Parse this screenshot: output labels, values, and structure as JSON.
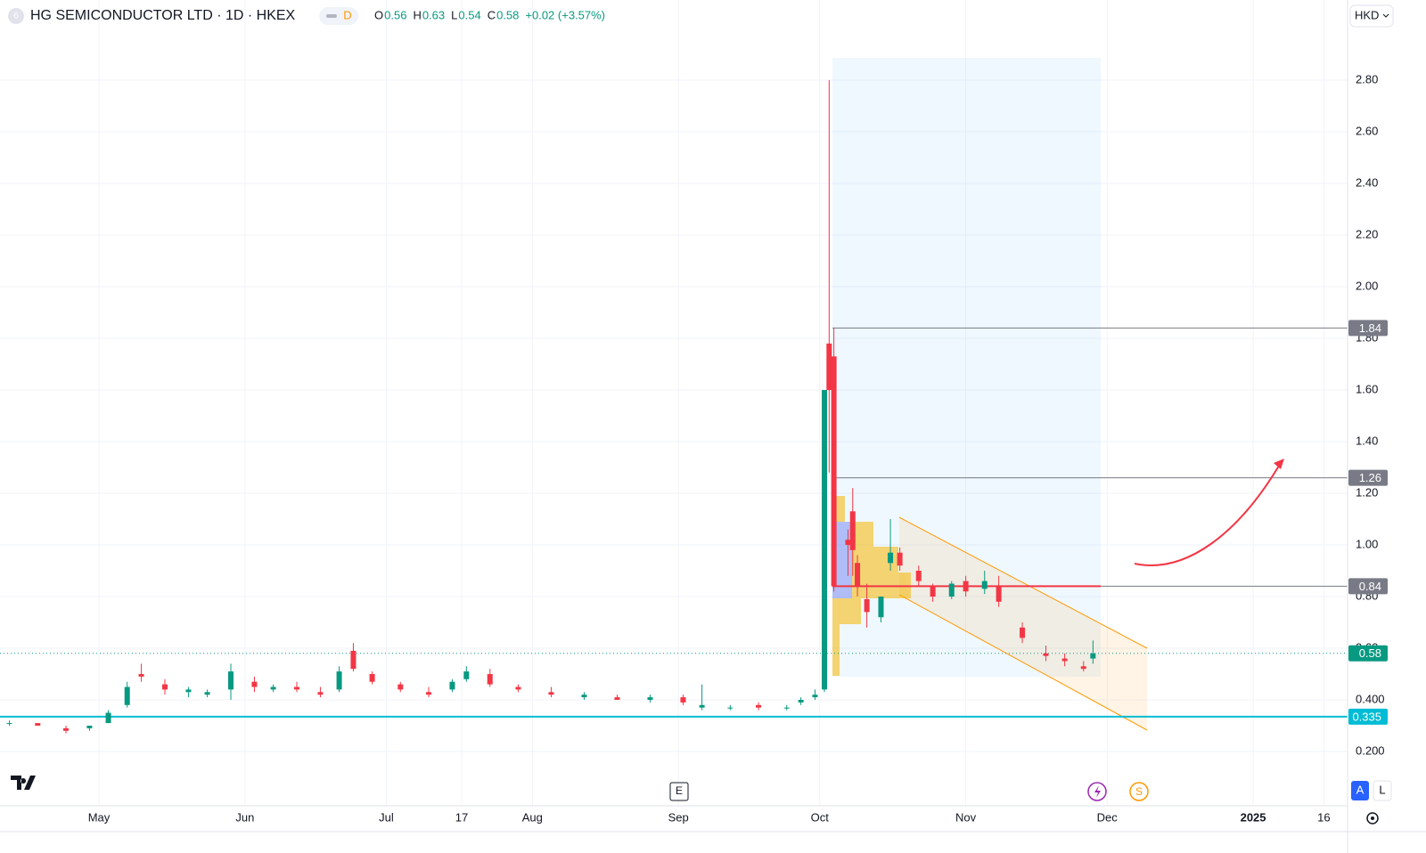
{
  "header": {
    "symbol_icon": "6",
    "title": "HG SEMICONDUCTOR LTD · 1D · HKEX",
    "badge": "D",
    "ohlc": [
      {
        "key": "O",
        "value": "0.56"
      },
      {
        "key": "H",
        "value": "0.63"
      },
      {
        "key": "L",
        "value": "0.54"
      },
      {
        "key": "C",
        "value": "0.58"
      }
    ],
    "change": "+0.02 (+3.57%)",
    "currency": "HKD"
  },
  "chart_data": {
    "type": "candlestick",
    "up_color": "#089981",
    "down_color": "#f23645",
    "x": [
      "04-12",
      "04-18",
      "04-24",
      "04-29",
      "05-03",
      "05-07",
      "05-10",
      "05-15",
      "05-20",
      "05-24",
      "05-29",
      "06-03",
      "06-07",
      "06-12",
      "06-17",
      "06-21",
      "06-24",
      "06-28",
      "07-04",
      "07-10",
      "07-15",
      "07-18",
      "07-23",
      "07-29",
      "08-05",
      "08-12",
      "08-19",
      "08-26",
      "09-02",
      "09-06",
      "09-12",
      "09-18",
      "09-24",
      "09-27",
      "09-30",
      "10-02",
      "10-03",
      "10-04",
      "10-07",
      "10-08",
      "10-09",
      "10-11",
      "10-14",
      "10-16",
      "10-18",
      "10-22",
      "10-25",
      "10-29",
      "11-01",
      "11-05",
      "11-08",
      "11-13",
      "11-18",
      "11-22",
      "11-26",
      "11-28"
    ],
    "open": [
      0.31,
      0.31,
      0.29,
      0.29,
      0.31,
      0.38,
      0.5,
      0.46,
      0.43,
      0.42,
      0.44,
      0.47,
      0.44,
      0.45,
      0.43,
      0.44,
      0.59,
      0.5,
      0.46,
      0.43,
      0.44,
      0.48,
      0.5,
      0.45,
      0.43,
      0.41,
      0.41,
      0.4,
      0.41,
      0.37,
      0.37,
      0.38,
      0.37,
      0.39,
      0.41,
      0.44,
      1.78,
      1.73,
      1.02,
      1.13,
      0.93,
      0.79,
      0.72,
      0.93,
      0.97,
      0.9,
      0.84,
      0.8,
      0.86,
      0.83,
      0.84,
      0.68,
      0.58,
      0.56,
      0.53,
      0.56
    ],
    "high": [
      0.32,
      0.31,
      0.3,
      0.3,
      0.36,
      0.47,
      0.54,
      0.48,
      0.45,
      0.44,
      0.54,
      0.49,
      0.46,
      0.47,
      0.45,
      0.53,
      0.62,
      0.51,
      0.47,
      0.45,
      0.48,
      0.53,
      0.52,
      0.46,
      0.45,
      0.43,
      0.42,
      0.42,
      0.42,
      0.46,
      0.38,
      0.39,
      0.38,
      0.41,
      0.44,
      1.6,
      2.8,
      1.84,
      1.06,
      1.22,
      0.96,
      0.85,
      0.8,
      1.1,
      0.99,
      0.92,
      0.85,
      0.86,
      0.88,
      0.9,
      0.88,
      0.7,
      0.61,
      0.58,
      0.55,
      0.63
    ],
    "low": [
      0.3,
      0.3,
      0.27,
      0.28,
      0.31,
      0.37,
      0.47,
      0.42,
      0.41,
      0.41,
      0.4,
      0.43,
      0.43,
      0.43,
      0.41,
      0.43,
      0.51,
      0.46,
      0.43,
      0.41,
      0.43,
      0.47,
      0.45,
      0.43,
      0.41,
      0.4,
      0.4,
      0.39,
      0.38,
      0.36,
      0.36,
      0.36,
      0.36,
      0.38,
      0.4,
      0.43,
      1.28,
      0.82,
      0.88,
      0.88,
      0.8,
      0.68,
      0.7,
      0.9,
      0.9,
      0.84,
      0.78,
      0.79,
      0.8,
      0.81,
      0.76,
      0.62,
      0.55,
      0.53,
      0.51,
      0.54
    ],
    "close": [
      0.31,
      0.3,
      0.28,
      0.3,
      0.35,
      0.45,
      0.49,
      0.44,
      0.44,
      0.43,
      0.51,
      0.45,
      0.45,
      0.44,
      0.42,
      0.51,
      0.52,
      0.47,
      0.44,
      0.42,
      0.47,
      0.51,
      0.46,
      0.44,
      0.42,
      0.42,
      0.4,
      0.41,
      0.39,
      0.38,
      0.37,
      0.37,
      0.37,
      0.4,
      0.42,
      1.6,
      1.6,
      0.84,
      1.0,
      0.98,
      0.84,
      0.74,
      0.8,
      0.97,
      0.92,
      0.86,
      0.8,
      0.85,
      0.82,
      0.86,
      0.78,
      0.64,
      0.57,
      0.55,
      0.52,
      0.58
    ],
    "ylim": [
      0.1,
      3.0
    ],
    "yticks": [
      {
        "value": 0.2,
        "label": "0.200"
      },
      {
        "value": 0.4,
        "label": "0.400"
      },
      {
        "value": 0.6,
        "label": "0.60"
      },
      {
        "value": 0.8,
        "label": "0.80"
      },
      {
        "value": 1.0,
        "label": "1.00"
      },
      {
        "value": 1.2,
        "label": "1.20"
      },
      {
        "value": 1.4,
        "label": "1.40"
      },
      {
        "value": 1.6,
        "label": "1.60"
      },
      {
        "value": 1.8,
        "label": "1.80"
      },
      {
        "value": 2.0,
        "label": "2.00"
      },
      {
        "value": 2.2,
        "label": "2.20"
      },
      {
        "value": 2.4,
        "label": "2.40"
      },
      {
        "value": 2.6,
        "label": "2.60"
      },
      {
        "value": 2.8,
        "label": "2.80"
      }
    ],
    "xticks": [
      {
        "value": "05-01",
        "label": "May"
      },
      {
        "value": "06-01",
        "label": "Jun"
      },
      {
        "value": "07-01",
        "label": "Jul"
      },
      {
        "value": "07-17",
        "label": "17"
      },
      {
        "value": "08-01",
        "label": "Aug"
      },
      {
        "value": "09-01",
        "label": "Sep"
      },
      {
        "value": "10-01",
        "label": "Oct"
      },
      {
        "value": "11-01",
        "label": "Nov"
      },
      {
        "value": "12-01",
        "label": "Dec"
      },
      {
        "value": "01-01",
        "label": "2025"
      },
      {
        "value": "01-16",
        "label": "16"
      }
    ],
    "grid": true,
    "levels": [
      {
        "value": 1.84,
        "color": "#787b86"
      },
      {
        "value": 1.26,
        "color": "#787b86"
      },
      {
        "value": 0.84,
        "color": "#f23645"
      },
      {
        "value": 0.58,
        "color": "#089981"
      },
      {
        "value": 0.335,
        "color": "#00bcd4"
      }
    ]
  },
  "markers": {
    "earnings": "E",
    "dividend": "S"
  },
  "scale_buttons": [
    "A",
    "L"
  ]
}
